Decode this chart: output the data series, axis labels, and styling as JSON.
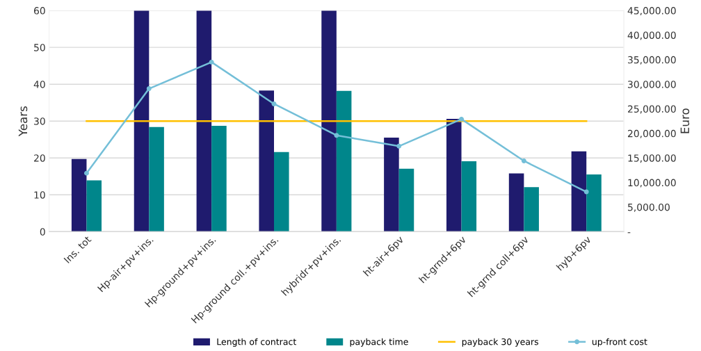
{
  "chart_data": {
    "type": "bar",
    "ylabel": "Years",
    "y2label": "Euro",
    "categories": [
      "Ins. tot",
      "Hp-air+pv+ins.",
      "Hp-ground+pv+ins.",
      "Hp-ground coll.+pv+ins.",
      "hybridr+pv+ins.",
      "ht-air+6pv",
      "ht-grnd+6pv",
      "ht-grnd coll+6pv",
      "hyb+6pv"
    ],
    "series": [
      {
        "name": "Length of contract",
        "color": "#1f1b6e",
        "values": [
          19.7,
          60,
          60,
          38.3,
          60,
          25.5,
          30.6,
          15.8,
          21.8
        ]
      },
      {
        "name": "payback time",
        "color": "#00868b",
        "values": [
          13.9,
          28.4,
          28.7,
          21.6,
          38.2,
          17.1,
          19.1,
          12.1,
          15.5
        ]
      },
      {
        "name": "payback 30 years",
        "type": "line",
        "color": "#ffc000",
        "marker": "none",
        "values": [
          30,
          30,
          30,
          30,
          30,
          30,
          30,
          30,
          30
        ]
      },
      {
        "name": "up-front cost",
        "type": "line",
        "axis": "y2",
        "color": "#74bfd8",
        "marker": "circle",
        "values": [
          11900,
          29100,
          34500,
          26000,
          19600,
          17400,
          22900,
          14400,
          8100
        ]
      }
    ],
    "ylim": [
      0,
      60
    ],
    "yticks": [
      0,
      10,
      20,
      30,
      40,
      50,
      60
    ],
    "y2lim": [
      0,
      45000
    ],
    "y2ticks": [
      {
        "value": 0,
        "label": "-"
      },
      {
        "value": 5000,
        "label": "5,000.00"
      },
      {
        "value": 10000,
        "label": "10,000.00"
      },
      {
        "value": 15000,
        "label": "15,000.00"
      },
      {
        "value": 20000,
        "label": "20,000.00"
      },
      {
        "value": 25000,
        "label": "25,000.00"
      },
      {
        "value": 30000,
        "label": "30,000.00"
      },
      {
        "value": 35000,
        "label": "35,000.00"
      },
      {
        "value": 40000,
        "label": "40,000.00"
      },
      {
        "value": 45000,
        "label": "45,000.00"
      }
    ],
    "grid": "y",
    "legend": "bottom"
  }
}
